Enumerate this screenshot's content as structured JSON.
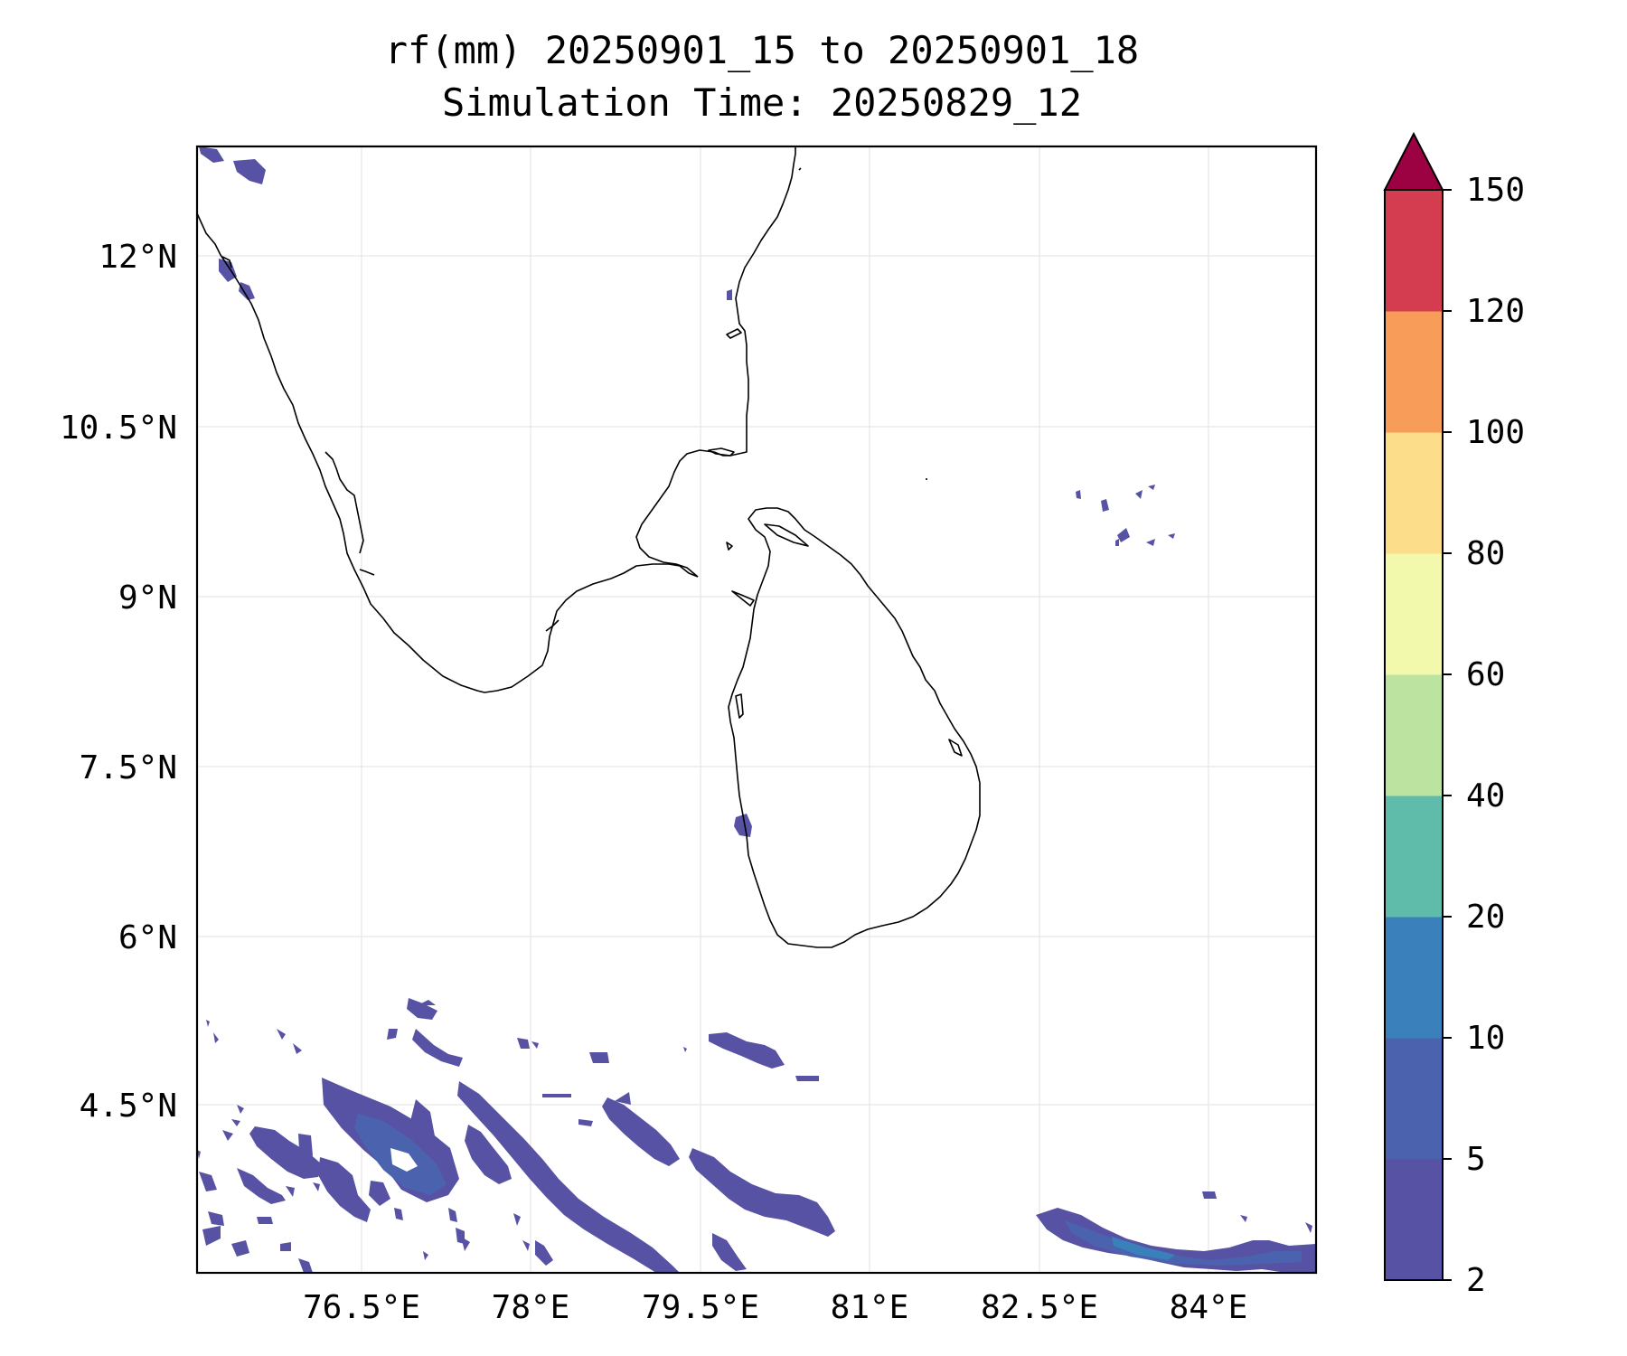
{
  "title": {
    "line1": "rf(mm) 20250901_15 to 20250901_18",
    "line2": "Simulation Time: 20250829_12"
  },
  "map": {
    "lon_ticks": [
      "76.5°E",
      "78°E",
      "79.5°E",
      "81°E",
      "82.5°E",
      "84°E"
    ],
    "lat_ticks": [
      "12°N",
      "10.5°N",
      "9°N",
      "7.5°N",
      "6°N",
      "4.5°N"
    ]
  },
  "colorbar": {
    "levels": [
      "2",
      "5",
      "10",
      "20",
      "40",
      "60",
      "80",
      "100",
      "120",
      "150"
    ],
    "colors": [
      "#5752a3",
      "#4b63ae",
      "#3a80ba",
      "#5fbcaa",
      "#bce3a0",
      "#f2f8ac",
      "#fcdd8a",
      "#f89c5a",
      "#d43d4f"
    ],
    "extend_color": "#9c0142"
  },
  "chart_data": {
    "type": "contour-map",
    "variable": "rf(mm)",
    "lon_range": [
      75,
      84.9
    ],
    "lat_range": [
      3.3,
      13.3
    ],
    "lon_ticks": [
      76.5,
      78,
      79.5,
      81,
      82.5,
      84
    ],
    "lat_ticks": [
      12,
      10.5,
      9,
      7.5,
      6,
      4.5
    ],
    "contour_levels": [
      2,
      5,
      10,
      20,
      40,
      60,
      80,
      100,
      120,
      150
    ],
    "extend": "max",
    "grid": true,
    "colorbar_position": "right"
  }
}
